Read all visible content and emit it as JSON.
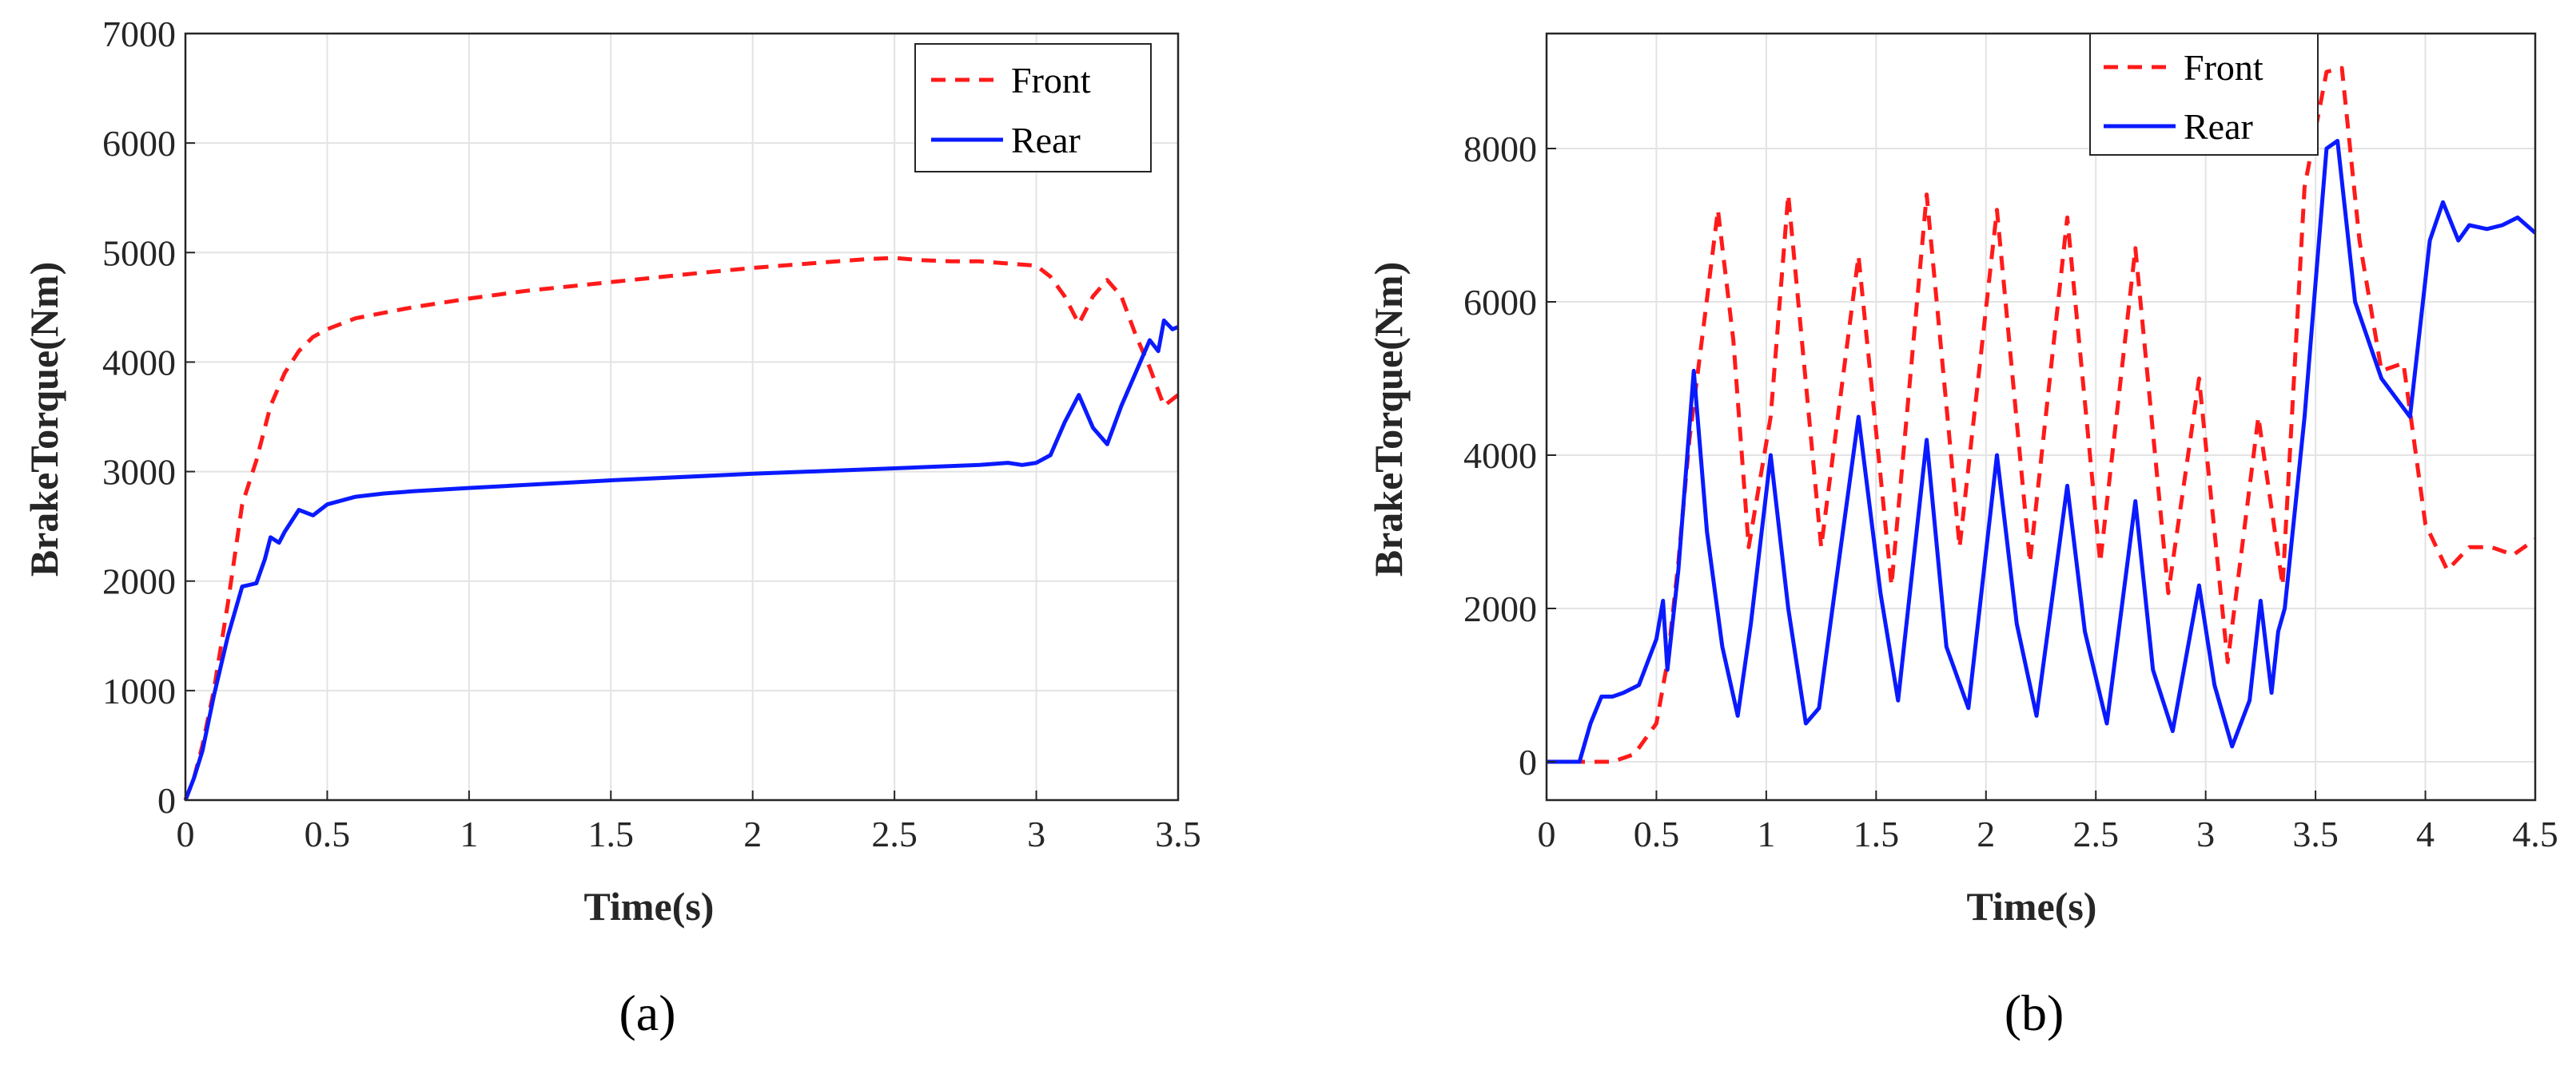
{
  "chart_data": [
    {
      "type": "line",
      "panel_label": "(a)",
      "xlabel": "Time(s)",
      "ylabel": "BrakeTorque(Nm)",
      "xlim": [
        0,
        3.5
      ],
      "ylim": [
        0,
        7000
      ],
      "xticks": [
        0,
        0.5,
        1,
        1.5,
        2,
        2.5,
        3,
        3.5
      ],
      "xtick_labels": [
        "0",
        "0.5",
        "1",
        "1.5",
        "2",
        "2.5",
        "3",
        "3.5"
      ],
      "yticks": [
        0,
        1000,
        2000,
        3000,
        4000,
        5000,
        6000,
        7000
      ],
      "ytick_labels": [
        "0",
        "1000",
        "2000",
        "3000",
        "4000",
        "5000",
        "6000",
        "7000"
      ],
      "grid": true,
      "legend": "top-right",
      "series": [
        {
          "name": "Front",
          "color": "#ff1a1a",
          "style": "dashed",
          "x": [
            0,
            0.03,
            0.06,
            0.1,
            0.15,
            0.2,
            0.25,
            0.3,
            0.35,
            0.4,
            0.45,
            0.5,
            0.6,
            0.7,
            0.8,
            1.0,
            1.2,
            1.5,
            1.8,
            2.0,
            2.2,
            2.4,
            2.5,
            2.6,
            2.7,
            2.8,
            2.9,
            3.0,
            3.05,
            3.1,
            3.15,
            3.2,
            3.25,
            3.3,
            3.35,
            3.4,
            3.45,
            3.5
          ],
          "y": [
            0,
            200,
            500,
            1000,
            1800,
            2700,
            3100,
            3600,
            3900,
            4100,
            4230,
            4300,
            4400,
            4450,
            4500,
            4580,
            4650,
            4730,
            4810,
            4860,
            4900,
            4940,
            4950,
            4930,
            4920,
            4920,
            4900,
            4880,
            4780,
            4600,
            4350,
            4600,
            4750,
            4600,
            4250,
            3950,
            3600,
            3700
          ]
        },
        {
          "name": "Rear",
          "color": "#0a1aff",
          "style": "solid",
          "x": [
            0,
            0.03,
            0.06,
            0.1,
            0.15,
            0.2,
            0.25,
            0.28,
            0.3,
            0.33,
            0.35,
            0.4,
            0.45,
            0.5,
            0.6,
            0.7,
            0.8,
            1.0,
            1.5,
            2.0,
            2.5,
            2.8,
            2.9,
            2.95,
            3.0,
            3.05,
            3.1,
            3.15,
            3.2,
            3.25,
            3.3,
            3.35,
            3.4,
            3.43,
            3.45,
            3.48,
            3.5
          ],
          "y": [
            0,
            200,
            450,
            950,
            1500,
            1950,
            1980,
            2200,
            2400,
            2350,
            2450,
            2650,
            2600,
            2700,
            2770,
            2800,
            2820,
            2850,
            2920,
            2980,
            3030,
            3060,
            3080,
            3060,
            3080,
            3150,
            3450,
            3700,
            3400,
            3250,
            3600,
            3900,
            4200,
            4100,
            4380,
            4300,
            4320
          ]
        }
      ]
    },
    {
      "type": "line",
      "panel_label": "(b)",
      "xlabel": "Time(s)",
      "ylabel": "BrakeTorque(Nm)",
      "xlim": [
        0,
        4.5
      ],
      "ylim": [
        -500,
        9500
      ],
      "xticks": [
        0,
        0.5,
        1,
        1.5,
        2,
        2.5,
        3,
        3.5,
        4,
        4.5
      ],
      "xtick_labels": [
        "0",
        "0.5",
        "1",
        "1.5",
        "2",
        "2.5",
        "3",
        "3.5",
        "4",
        "4.5"
      ],
      "yticks": [
        0,
        2000,
        4000,
        6000,
        8000
      ],
      "ytick_labels": [
        "0",
        "2000",
        "4000",
        "6000",
        "8000"
      ],
      "grid": true,
      "legend": "top-center",
      "series": [
        {
          "name": "Front",
          "color": "#ff1a1a",
          "style": "dashed",
          "x": [
            0,
            0.3,
            0.4,
            0.5,
            0.55,
            0.6,
            0.65,
            0.72,
            0.78,
            0.85,
            0.92,
            1.02,
            1.1,
            1.25,
            1.42,
            1.57,
            1.73,
            1.88,
            2.05,
            2.2,
            2.37,
            2.52,
            2.68,
            2.83,
            2.97,
            3.1,
            3.24,
            3.35,
            3.45,
            3.55,
            3.62,
            3.7,
            3.8,
            3.9,
            4.0,
            4.1,
            4.2,
            4.3,
            4.4,
            4.5
          ],
          "y": [
            0,
            0,
            100,
            500,
            1300,
            2600,
            4200,
            5800,
            7200,
            5500,
            2800,
            4500,
            7400,
            2800,
            6600,
            2300,
            7400,
            2800,
            7200,
            2600,
            7100,
            2600,
            6700,
            2200,
            5000,
            1300,
            4500,
            2300,
            7500,
            9000,
            9050,
            6800,
            5100,
            5200,
            3100,
            2500,
            2800,
            2800,
            2700,
            2900
          ]
        },
        {
          "name": "Rear",
          "color": "#0a1aff",
          "style": "solid",
          "x": [
            0,
            0.15,
            0.2,
            0.25,
            0.3,
            0.35,
            0.42,
            0.5,
            0.53,
            0.55,
            0.6,
            0.67,
            0.73,
            0.8,
            0.87,
            0.93,
            1.02,
            1.1,
            1.18,
            1.24,
            1.32,
            1.42,
            1.52,
            1.6,
            1.73,
            1.82,
            1.92,
            2.05,
            2.14,
            2.23,
            2.37,
            2.45,
            2.55,
            2.68,
            2.76,
            2.85,
            2.97,
            3.04,
            3.12,
            3.2,
            3.25,
            3.3,
            3.33,
            3.36,
            3.45,
            3.55,
            3.6,
            3.68,
            3.8,
            3.93,
            4.02,
            4.08,
            4.15,
            4.2,
            4.28,
            4.35,
            4.42,
            4.5
          ],
          "y": [
            0,
            0,
            500,
            850,
            850,
            900,
            1000,
            1600,
            2100,
            1200,
            2500,
            5100,
            3000,
            1500,
            600,
            1800,
            4000,
            2000,
            500,
            700,
            2400,
            4500,
            2200,
            800,
            4200,
            1500,
            700,
            4000,
            1800,
            600,
            3600,
            1700,
            500,
            3400,
            1200,
            400,
            2300,
            1000,
            200,
            800,
            2100,
            900,
            1700,
            2000,
            4500,
            8000,
            8100,
            6000,
            5000,
            4500,
            6800,
            7300,
            6800,
            7000,
            6950,
            7000,
            7100,
            6900
          ]
        }
      ]
    }
  ]
}
